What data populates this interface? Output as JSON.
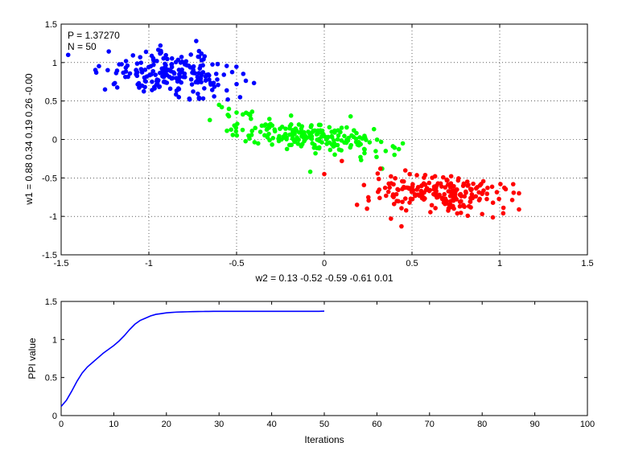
{
  "chart_data": [
    {
      "type": "scatter",
      "title": "",
      "xlabel": "w2 = 0.13  -0.52  -0.59  -0.61  0.01",
      "ylabel": "w1 = 0.88  0.34  0.19  0.26  -0.00",
      "xlim": [
        -1.5,
        1.5
      ],
      "ylim": [
        -1.5,
        1.5
      ],
      "xticks": [
        -1.5,
        -1,
        -0.5,
        0,
        0.5,
        1,
        1.5
      ],
      "yticks": [
        -1.5,
        -1,
        -0.5,
        0,
        0.5,
        1,
        1.5
      ],
      "xtick_labels": [
        "-1.5",
        "-1",
        "-0.5",
        "0",
        "0.5",
        "1",
        "1.5"
      ],
      "ytick_labels": [
        "-1.5",
        "-1",
        "-0.5",
        "0",
        "0.5",
        "1",
        "1.5"
      ],
      "grid": true,
      "grid_style": "dotted",
      "annotations": [
        "P = 1.37270",
        "N = 50"
      ],
      "clusters": [
        {
          "color": "#0000ff",
          "center": [
            -0.85,
            0.85
          ],
          "spread": [
            0.2,
            0.14
          ],
          "tilt": -0.3,
          "count": 200,
          "extra_points": [
            [
              -1.46,
              1.1
            ],
            [
              -1.3,
              0.87
            ],
            [
              -0.73,
              1.28
            ],
            [
              -0.55,
              0.52
            ],
            [
              -0.5,
              0.72
            ],
            [
              -0.48,
              0.55
            ],
            [
              -1.2,
              0.72
            ],
            [
              -1.25,
              0.65
            ]
          ]
        },
        {
          "color": "#00ff00",
          "center": [
            -0.12,
            0.05
          ],
          "spread": [
            0.24,
            0.1
          ],
          "tilt": -0.3,
          "count": 200,
          "extra_points": [
            [
              -0.6,
              0.45
            ],
            [
              -0.55,
              0.32
            ],
            [
              -0.5,
              0.35
            ],
            [
              0.15,
              0.3
            ],
            [
              0.35,
              -0.15
            ],
            [
              0.4,
              -0.2
            ],
            [
              0.33,
              -0.38
            ],
            [
              -0.08,
              -0.42
            ]
          ]
        },
        {
          "color": "#ff0000",
          "center": [
            0.68,
            -0.7
          ],
          "spread": [
            0.2,
            0.12
          ],
          "tilt": -0.2,
          "count": 200,
          "extra_points": [
            [
              1.11,
              -0.7
            ],
            [
              1.02,
              -0.96
            ],
            [
              0.38,
              -1.03
            ],
            [
              0.44,
              -1.13
            ],
            [
              0.9,
              -0.97
            ],
            [
              0.32,
              -0.38
            ],
            [
              0.38,
              -0.48
            ],
            [
              0.0,
              -0.45
            ],
            [
              0.1,
              -0.28
            ]
          ]
        }
      ]
    },
    {
      "type": "line",
      "title": "",
      "xlabel": "Iterations",
      "ylabel": "PPI value",
      "xlim": [
        0,
        100
      ],
      "ylim": [
        0,
        1.5
      ],
      "xticks": [
        0,
        10,
        20,
        30,
        40,
        50,
        60,
        70,
        80,
        90,
        100
      ],
      "yticks": [
        0,
        0.5,
        1,
        1.5
      ],
      "xtick_labels": [
        "0",
        "10",
        "20",
        "30",
        "40",
        "50",
        "60",
        "70",
        "80",
        "90",
        "100"
      ],
      "ytick_labels": [
        "0",
        "0.5",
        "1",
        "1.5"
      ],
      "grid": false,
      "series": [
        {
          "color": "#0000ff",
          "x": [
            0,
            1,
            2,
            3,
            4,
            5,
            6,
            7,
            8,
            9,
            10,
            11,
            12,
            13,
            14,
            15,
            16,
            17,
            18,
            19,
            20,
            21,
            22,
            23,
            24,
            25,
            26,
            27,
            28,
            29,
            30,
            31,
            32,
            33,
            34,
            35,
            36,
            37,
            38,
            39,
            40,
            41,
            42,
            43,
            44,
            45,
            46,
            47,
            48,
            49,
            50
          ],
          "y": [
            0.12,
            0.2,
            0.32,
            0.45,
            0.56,
            0.64,
            0.7,
            0.76,
            0.82,
            0.87,
            0.92,
            0.98,
            1.05,
            1.13,
            1.2,
            1.25,
            1.28,
            1.31,
            1.33,
            1.34,
            1.35,
            1.355,
            1.36,
            1.362,
            1.364,
            1.366,
            1.367,
            1.368,
            1.369,
            1.37,
            1.37,
            1.37,
            1.37,
            1.37,
            1.37,
            1.37,
            1.37,
            1.37,
            1.37,
            1.37,
            1.37,
            1.37,
            1.37,
            1.37,
            1.37,
            1.37,
            1.37,
            1.37,
            1.37,
            1.37,
            1.3727
          ]
        }
      ]
    }
  ]
}
